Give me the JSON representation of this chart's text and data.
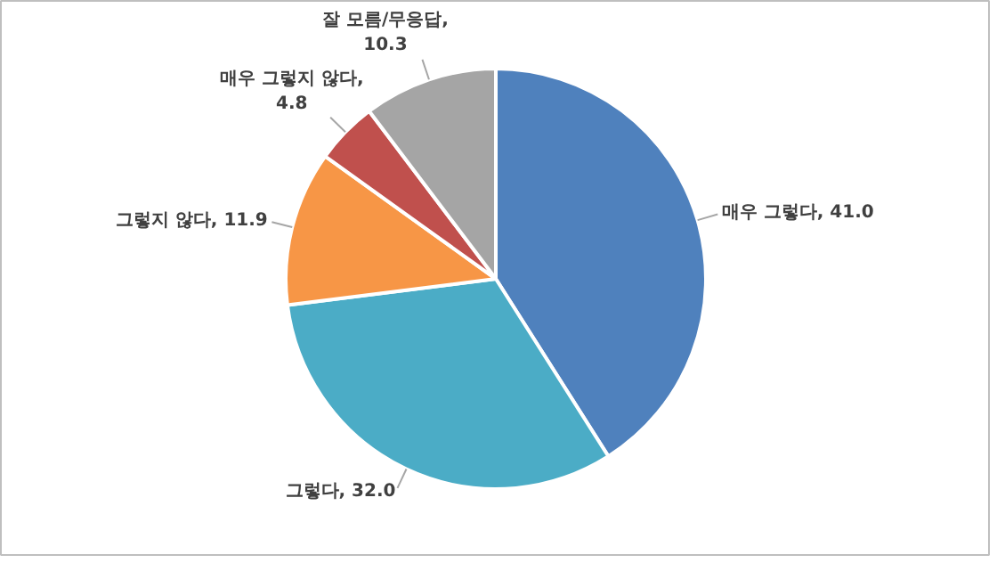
{
  "chart_data": {
    "type": "pie",
    "categories": [
      "매우 그렇다",
      "그렇다",
      "그렇지 않다",
      "매우 그렇지 않다",
      "잘 모름/무응답"
    ],
    "values": [
      41.0,
      32.0,
      11.9,
      4.8,
      10.3
    ],
    "value_labels": [
      ", 41.0",
      ", 32.0",
      ", 11.9",
      ",\n4.8",
      ",\n10.3"
    ],
    "colors": [
      "#4f81bd",
      "#4bacc6",
      "#f79646",
      "#c0504d",
      "#a5a5a5"
    ]
  }
}
